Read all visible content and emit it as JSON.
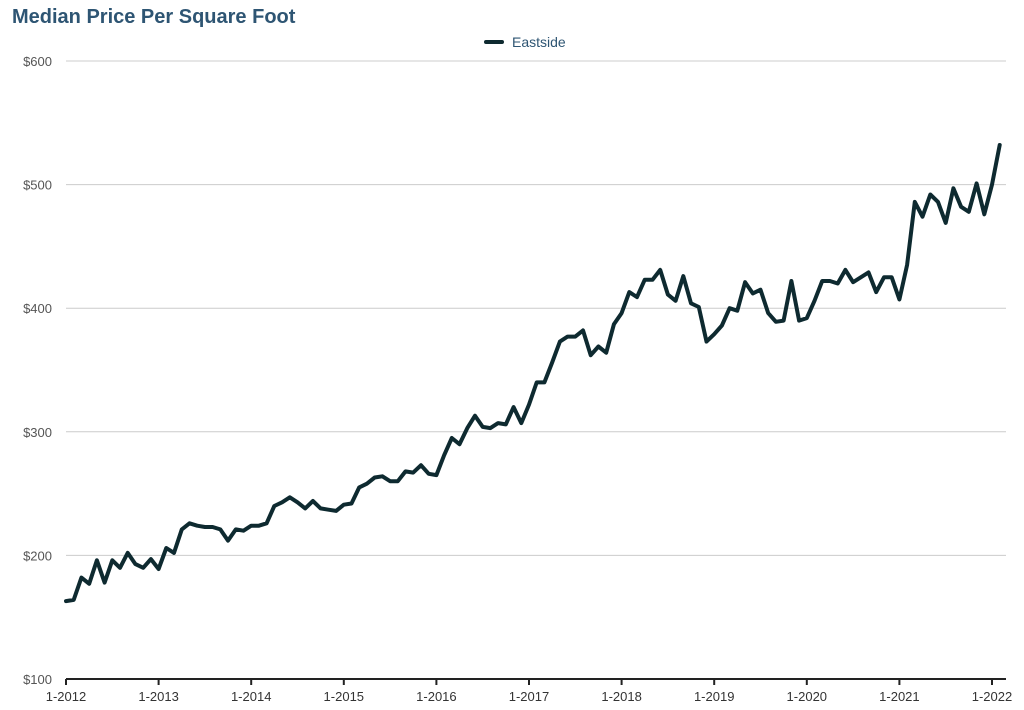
{
  "chart_data": {
    "type": "line",
    "title": "Median Price Per Square Foot",
    "xlabel": "",
    "ylabel": "",
    "ylim": [
      100,
      600
    ],
    "yticks": [
      "$100",
      "$200",
      "$300",
      "$400",
      "$500",
      "$600"
    ],
    "xticks": [
      "1-2012",
      "1-2013",
      "1-2014",
      "1-2015",
      "1-2016",
      "1-2017",
      "1-2018",
      "1-2019",
      "1-2020",
      "1-2021",
      "1-2022"
    ],
    "x_start": "1-2012",
    "x_end": "2-2022",
    "grid": true,
    "legend": "top-center",
    "series": [
      {
        "name": "Eastside",
        "color": "#0e2a30",
        "values": [
          163,
          164,
          182,
          177,
          196,
          178,
          196,
          190,
          202,
          193,
          190,
          197,
          189,
          206,
          202,
          221,
          226,
          224,
          223,
          223,
          221,
          212,
          221,
          220,
          224,
          224,
          226,
          240,
          243,
          247,
          243,
          238,
          244,
          238,
          237,
          236,
          241,
          242,
          255,
          258,
          263,
          264,
          260,
          260,
          268,
          267,
          273,
          266,
          265,
          281,
          295,
          290,
          303,
          313,
          304,
          303,
          307,
          306,
          320,
          307,
          322,
          340,
          340,
          356,
          373,
          377,
          377,
          382,
          362,
          369,
          364,
          387,
          396,
          413,
          409,
          423,
          423,
          431,
          411,
          406,
          426,
          404,
          401,
          373,
          379,
          386,
          400,
          398,
          421,
          412,
          415,
          396,
          389,
          390,
          422,
          390,
          392,
          406,
          422,
          422,
          420,
          431,
          421,
          425,
          429,
          413,
          425,
          425,
          407,
          435,
          486,
          474,
          492,
          486,
          469,
          497,
          482,
          478,
          501,
          476,
          500,
          532
        ]
      }
    ]
  }
}
